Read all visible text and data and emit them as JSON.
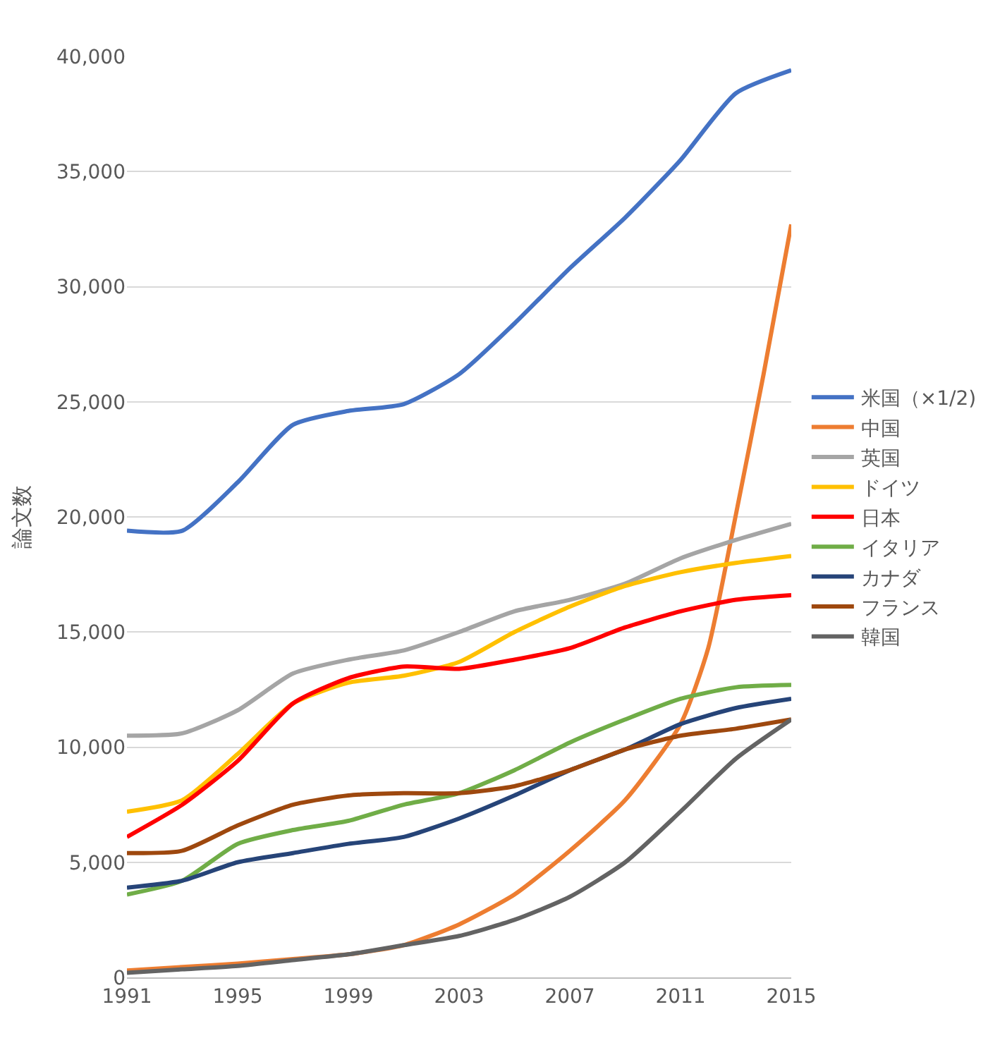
{
  "chart_data": {
    "type": "line",
    "ylabel": "論文数",
    "x": [
      1991,
      1993,
      1995,
      1997,
      1999,
      2001,
      2003,
      2005,
      2007,
      2009,
      2011,
      2013,
      2015
    ],
    "xlim": [
      1991,
      2015
    ],
    "xticks": [
      1991,
      1995,
      1999,
      2003,
      2007,
      2011,
      2015
    ],
    "ylim": [
      0,
      40000
    ],
    "yticks": [
      {
        "value": 0,
        "label": "0"
      },
      {
        "value": 5000,
        "label": "5,000"
      },
      {
        "value": 10000,
        "label": "10,000"
      },
      {
        "value": 15000,
        "label": "15,000"
      },
      {
        "value": 20000,
        "label": "20,000"
      },
      {
        "value": 25000,
        "label": "25,000"
      },
      {
        "value": 30000,
        "label": "30,000"
      },
      {
        "value": 35000,
        "label": "35,000"
      },
      {
        "value": 40000,
        "label": "40,000"
      }
    ],
    "grid": "y",
    "legend": "right",
    "marker": "none",
    "line_style": "solid",
    "series": [
      {
        "name": "米国（×1/2)",
        "color": "#4472c4",
        "values": [
          19400,
          19400,
          21500,
          24000,
          24600,
          24900,
          26200,
          28400,
          30800,
          33000,
          35500,
          38400,
          39400
        ]
      },
      {
        "name": "中国",
        "color": "#ed7d31",
        "x": [
          1991,
          1993,
          1995,
          1997,
          1999,
          2001,
          2003,
          2005,
          2007,
          2009,
          2011,
          2012,
          2013,
          2014,
          2015
        ],
        "values": [
          300,
          450,
          600,
          800,
          1000,
          1400,
          2300,
          3600,
          5500,
          7700,
          11000,
          14300,
          20100,
          26200,
          32700
        ]
      },
      {
        "name": "英国",
        "color": "#a5a5a5",
        "values": [
          10500,
          10600,
          11600,
          13200,
          13800,
          14200,
          15000,
          15900,
          16400,
          17100,
          18200,
          19000,
          19700
        ]
      },
      {
        "name": "ドイツ",
        "color": "#ffc000",
        "values": [
          7200,
          7700,
          9700,
          11900,
          12800,
          13100,
          13700,
          15000,
          16100,
          17000,
          17600,
          18000,
          18300
        ]
      },
      {
        "name": "日本",
        "color": "#ff0000",
        "values": [
          6100,
          7500,
          9400,
          11900,
          13000,
          13500,
          13400,
          13800,
          14300,
          15200,
          15900,
          16400,
          16600
        ]
      },
      {
        "name": "イタリア",
        "color": "#70ad47",
        "values": [
          3600,
          4200,
          5800,
          6400,
          6800,
          7500,
          8000,
          9000,
          10200,
          11200,
          12100,
          12600,
          12700
        ]
      },
      {
        "name": "カナダ",
        "color": "#264478",
        "values": [
          3900,
          4200,
          5000,
          5400,
          5800,
          6100,
          6900,
          7900,
          9000,
          9900,
          11000,
          11700,
          12100
        ]
      },
      {
        "name": "フランス",
        "color": "#9e480e",
        "values": [
          5400,
          5500,
          6600,
          7500,
          7900,
          8000,
          8000,
          8300,
          9000,
          9900,
          10500,
          10800,
          11200
        ]
      },
      {
        "name": "韓国",
        "color": "#636363",
        "values": [
          200,
          350,
          500,
          750,
          1000,
          1400,
          1800,
          2500,
          3500,
          5000,
          7200,
          9500,
          11200
        ]
      }
    ]
  }
}
